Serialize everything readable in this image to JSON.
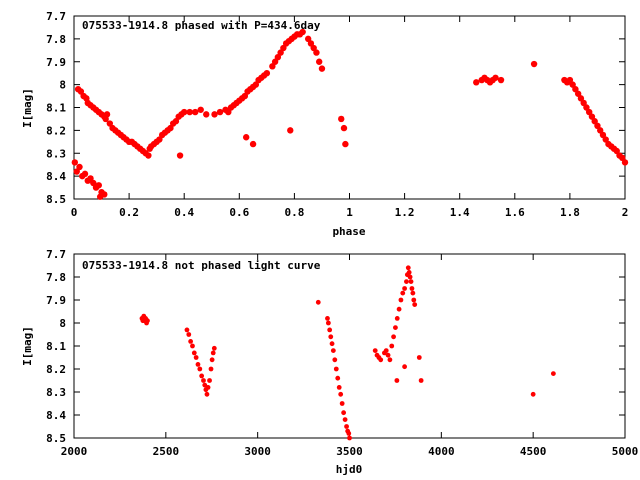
{
  "chart_data": [
    {
      "type": "scatter",
      "title": "075533-1914.8 phased with P=434.6day",
      "xlabel": "phase",
      "ylabel": "I[mag]",
      "xlim": [
        0,
        2
      ],
      "ylim": [
        8.5,
        7.7
      ],
      "y_inverted": true,
      "xticks": [
        0,
        0.2,
        0.4,
        0.6,
        0.8,
        1,
        1.2,
        1.4,
        1.6,
        1.8,
        2
      ],
      "yticks": [
        7.7,
        7.8,
        7.9,
        8,
        8.1,
        8.2,
        8.3,
        8.4,
        8.5
      ],
      "xtick_labels": [
        "0",
        "0.2",
        "0.4",
        "0.6",
        "0.8",
        "1",
        "1.2",
        "1.4",
        "1.6",
        "1.8",
        "2"
      ],
      "ytick_labels": [
        "7.7",
        "7.8",
        "7.9",
        "8",
        "8.1",
        "8.2",
        "8.3",
        "8.4",
        "8.5"
      ],
      "grid": false,
      "marker_color": "#ff0000",
      "marker": "filled-circle",
      "series": [
        {
          "points": [
            [
              0.003,
              8.34
            ],
            [
              0.01,
              8.38
            ],
            [
              0.02,
              8.36
            ],
            [
              0.03,
              8.4
            ],
            [
              0.04,
              8.39
            ],
            [
              0.05,
              8.42
            ],
            [
              0.06,
              8.41
            ],
            [
              0.07,
              8.43
            ],
            [
              0.08,
              8.45
            ],
            [
              0.09,
              8.44
            ],
            [
              0.1,
              8.47
            ],
            [
              0.11,
              8.48
            ],
            [
              0.095,
              8.49
            ],
            [
              0.015,
              8.02
            ],
            [
              0.025,
              8.03
            ],
            [
              0.035,
              8.05
            ],
            [
              0.045,
              8.06
            ],
            [
              0.05,
              8.08
            ],
            [
              0.06,
              8.09
            ],
            [
              0.07,
              8.1
            ],
            [
              0.08,
              8.11
            ],
            [
              0.09,
              8.12
            ],
            [
              0.1,
              8.13
            ],
            [
              0.11,
              8.14
            ],
            [
              0.115,
              8.15
            ],
            [
              0.12,
              8.13
            ],
            [
              0.13,
              8.17
            ],
            [
              0.14,
              8.19
            ],
            [
              0.15,
              8.2
            ],
            [
              0.16,
              8.21
            ],
            [
              0.17,
              8.22
            ],
            [
              0.18,
              8.23
            ],
            [
              0.19,
              8.24
            ],
            [
              0.2,
              8.25
            ],
            [
              0.21,
              8.25
            ],
            [
              0.22,
              8.26
            ],
            [
              0.23,
              8.27
            ],
            [
              0.24,
              8.28
            ],
            [
              0.25,
              8.29
            ],
            [
              0.26,
              8.3
            ],
            [
              0.27,
              8.31
            ],
            [
              0.275,
              8.28
            ],
            [
              0.28,
              8.27
            ],
            [
              0.29,
              8.26
            ],
            [
              0.3,
              8.25
            ],
            [
              0.31,
              8.24
            ],
            [
              0.32,
              8.22
            ],
            [
              0.33,
              8.21
            ],
            [
              0.34,
              8.2
            ],
            [
              0.35,
              8.19
            ],
            [
              0.36,
              8.17
            ],
            [
              0.37,
              8.16
            ],
            [
              0.38,
              8.14
            ],
            [
              0.39,
              8.13
            ],
            [
              0.4,
              8.12
            ],
            [
              0.42,
              8.12
            ],
            [
              0.44,
              8.12
            ],
            [
              0.46,
              8.11
            ],
            [
              0.48,
              8.13
            ],
            [
              0.385,
              8.31
            ],
            [
              0.51,
              8.13
            ],
            [
              0.53,
              8.12
            ],
            [
              0.55,
              8.11
            ],
            [
              0.56,
              8.12
            ],
            [
              0.57,
              8.1
            ],
            [
              0.58,
              8.09
            ],
            [
              0.59,
              8.08
            ],
            [
              0.6,
              8.07
            ],
            [
              0.61,
              8.06
            ],
            [
              0.62,
              8.05
            ],
            [
              0.63,
              8.03
            ],
            [
              0.64,
              8.02
            ],
            [
              0.65,
              8.01
            ],
            [
              0.66,
              8.0
            ],
            [
              0.67,
              7.98
            ],
            [
              0.68,
              7.97
            ],
            [
              0.69,
              7.96
            ],
            [
              0.7,
              7.95
            ],
            [
              0.625,
              8.23
            ],
            [
              0.65,
              8.26
            ],
            [
              0.72,
              7.92
            ],
            [
              0.73,
              7.9
            ],
            [
              0.74,
              7.88
            ],
            [
              0.75,
              7.86
            ],
            [
              0.76,
              7.84
            ],
            [
              0.77,
              7.82
            ],
            [
              0.78,
              7.81
            ],
            [
              0.79,
              7.8
            ],
            [
              0.8,
              7.79
            ],
            [
              0.81,
              7.78
            ],
            [
              0.82,
              7.78
            ],
            [
              0.83,
              7.77
            ],
            [
              0.785,
              8.2
            ],
            [
              0.85,
              7.8
            ],
            [
              0.86,
              7.82
            ],
            [
              0.87,
              7.84
            ],
            [
              0.88,
              7.86
            ],
            [
              0.89,
              7.9
            ],
            [
              0.9,
              7.93
            ],
            [
              0.97,
              8.15
            ],
            [
              0.98,
              8.19
            ],
            [
              0.985,
              8.26
            ],
            [
              1.46,
              7.99
            ],
            [
              1.48,
              7.98
            ],
            [
              1.49,
              7.97
            ],
            [
              1.5,
              7.98
            ],
            [
              1.51,
              7.99
            ],
            [
              1.52,
              7.98
            ],
            [
              1.53,
              7.97
            ],
            [
              1.55,
              7.98
            ],
            [
              1.67,
              7.91
            ],
            [
              1.78,
              7.98
            ],
            [
              1.79,
              7.99
            ],
            [
              1.8,
              7.98
            ],
            [
              1.81,
              8.0
            ],
            [
              1.82,
              8.02
            ],
            [
              1.83,
              8.04
            ],
            [
              1.84,
              8.06
            ],
            [
              1.85,
              8.08
            ],
            [
              1.86,
              8.1
            ],
            [
              1.87,
              8.12
            ],
            [
              1.88,
              8.14
            ],
            [
              1.89,
              8.16
            ],
            [
              1.9,
              8.18
            ],
            [
              1.91,
              8.2
            ],
            [
              1.92,
              8.22
            ],
            [
              1.93,
              8.24
            ],
            [
              1.94,
              8.26
            ],
            [
              1.95,
              8.27
            ],
            [
              1.96,
              8.28
            ],
            [
              1.97,
              8.29
            ],
            [
              1.98,
              8.31
            ],
            [
              1.99,
              8.32
            ],
            [
              2.0,
              8.34
            ]
          ]
        }
      ]
    },
    {
      "type": "scatter",
      "title": "075533-1914.8 not phased light curve",
      "xlabel": "hjd0",
      "ylabel": "I[mag]",
      "xlim": [
        2000,
        5000
      ],
      "ylim": [
        8.5,
        7.7
      ],
      "y_inverted": true,
      "xticks": [
        2000,
        2500,
        3000,
        3500,
        4000,
        4500,
        5000
      ],
      "yticks": [
        7.7,
        7.8,
        7.9,
        8,
        8.1,
        8.2,
        8.3,
        8.4,
        8.5
      ],
      "xtick_labels": [
        "2000",
        "2500",
        "3000",
        "3500",
        "4000",
        "4500",
        "5000"
      ],
      "ytick_labels": [
        "7.7",
        "7.8",
        "7.9",
        "8",
        "8.1",
        "8.2",
        "8.3",
        "8.4",
        "8.5"
      ],
      "grid": false,
      "marker_color": "#ff0000",
      "marker": "filled-circle",
      "series": [
        {
          "points": [
            [
              2370,
              7.98
            ],
            [
              2375,
              7.99
            ],
            [
              2380,
              7.97
            ],
            [
              2385,
              7.99
            ],
            [
              2390,
              7.98
            ],
            [
              2395,
              8.0
            ],
            [
              2400,
              7.99
            ],
            [
              2615,
              8.03
            ],
            [
              2625,
              8.05
            ],
            [
              2635,
              8.08
            ],
            [
              2645,
              8.1
            ],
            [
              2655,
              8.13
            ],
            [
              2665,
              8.15
            ],
            [
              2675,
              8.18
            ],
            [
              2685,
              8.2
            ],
            [
              2695,
              8.23
            ],
            [
              2705,
              8.25
            ],
            [
              2712,
              8.27
            ],
            [
              2718,
              8.29
            ],
            [
              2724,
              8.31
            ],
            [
              2730,
              8.28
            ],
            [
              2738,
              8.25
            ],
            [
              2746,
              8.2
            ],
            [
              2752,
              8.16
            ],
            [
              2758,
              8.13
            ],
            [
              2764,
              8.11
            ],
            [
              3330,
              7.91
            ],
            [
              3380,
              7.98
            ],
            [
              3385,
              8.0
            ],
            [
              3392,
              8.03
            ],
            [
              3398,
              8.06
            ],
            [
              3405,
              8.09
            ],
            [
              3412,
              8.12
            ],
            [
              3420,
              8.16
            ],
            [
              3428,
              8.2
            ],
            [
              3436,
              8.24
            ],
            [
              3444,
              8.28
            ],
            [
              3452,
              8.31
            ],
            [
              3460,
              8.35
            ],
            [
              3468,
              8.39
            ],
            [
              3476,
              8.42
            ],
            [
              3484,
              8.45
            ],
            [
              3490,
              8.47
            ],
            [
              3496,
              8.48
            ],
            [
              3500,
              8.5
            ],
            [
              3640,
              8.12
            ],
            [
              3650,
              8.14
            ],
            [
              3660,
              8.15
            ],
            [
              3670,
              8.16
            ],
            [
              3690,
              8.13
            ],
            [
              3700,
              8.12
            ],
            [
              3710,
              8.14
            ],
            [
              3720,
              8.16
            ],
            [
              3730,
              8.1
            ],
            [
              3740,
              8.06
            ],
            [
              3750,
              8.02
            ],
            [
              3760,
              7.98
            ],
            [
              3770,
              7.94
            ],
            [
              3780,
              7.9
            ],
            [
              3790,
              7.87
            ],
            [
              3800,
              7.85
            ],
            [
              3810,
              7.82
            ],
            [
              3815,
              7.79
            ],
            [
              3820,
              7.76
            ],
            [
              3825,
              7.78
            ],
            [
              3830,
              7.8
            ],
            [
              3835,
              7.82
            ],
            [
              3840,
              7.85
            ],
            [
              3845,
              7.87
            ],
            [
              3850,
              7.9
            ],
            [
              3855,
              7.92
            ],
            [
              3758,
              8.25
            ],
            [
              3800,
              8.19
            ],
            [
              3880,
              8.15
            ],
            [
              3890,
              8.25
            ],
            [
              4500,
              8.31
            ],
            [
              4610,
              8.22
            ]
          ]
        }
      ]
    }
  ]
}
